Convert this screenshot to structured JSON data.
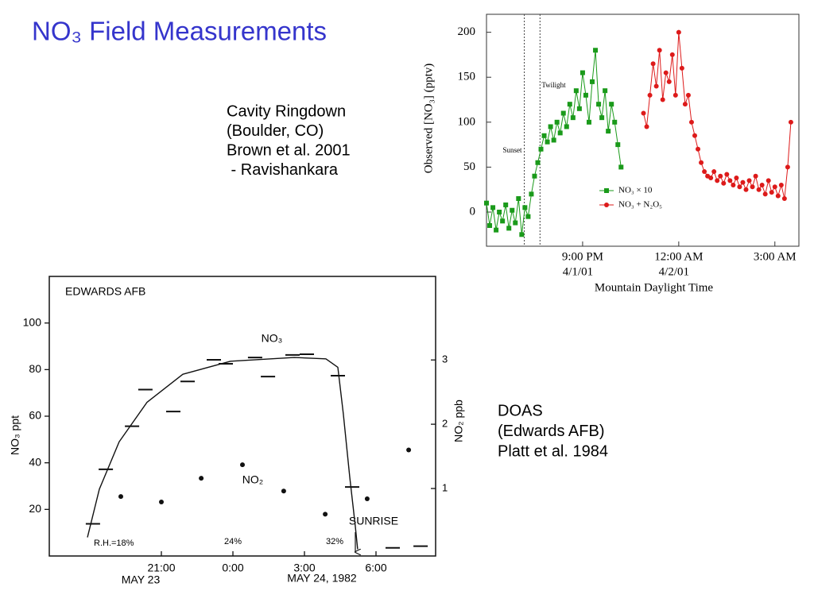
{
  "header": {
    "title": "NO₃ Field Measurements"
  },
  "text_blocks": [
    {
      "lines": [
        "Cavity Ringdown",
        "(Boulder, CO)",
        "Brown et al. 2001",
        " - Ravishankara"
      ]
    },
    {
      "lines": [
        "DOAS",
        "(Edwards AFB)",
        "Platt et al. 1984"
      ]
    }
  ],
  "chart_data": [
    {
      "type": "line",
      "ylabel": "Observed [NO₃] (pptv)",
      "xlabel": "Mountain Daylight Time",
      "xlim": [
        18,
        27.75
      ],
      "ylim": [
        -38,
        220
      ],
      "xticks": [
        {
          "value": 21,
          "label": "9:00 PM"
        },
        {
          "value": 24,
          "label": "12:00 AM"
        },
        {
          "value": 27,
          "label": "3:00 AM"
        }
      ],
      "xdates": [
        "4/1/01",
        "4/2/01"
      ],
      "yticks": [
        0,
        50,
        100,
        150,
        200
      ],
      "vlines": [
        {
          "value": 19.18,
          "label": "Sunset"
        },
        {
          "value": 19.67,
          "label": "Twilight"
        }
      ],
      "legend": "lower right",
      "series": [
        {
          "name": "NO₃ × 10",
          "color": "#1a9a1a",
          "marker": "square",
          "x": [
            18.0,
            18.1,
            18.2,
            18.3,
            18.4,
            18.5,
            18.6,
            18.7,
            18.8,
            18.9,
            19.0,
            19.1,
            19.2,
            19.3,
            19.4,
            19.5,
            19.6,
            19.7,
            19.8,
            19.9,
            20.0,
            20.1,
            20.2,
            20.3,
            20.4,
            20.5,
            20.6,
            20.7,
            20.8,
            20.9,
            21.0,
            21.1,
            21.2,
            21.3,
            21.4,
            21.5,
            21.6,
            21.7,
            21.8,
            21.9,
            22.0,
            22.1,
            22.2
          ],
          "values": [
            10,
            -15,
            5,
            -20,
            0,
            -10,
            8,
            -18,
            2,
            -12,
            15,
            -25,
            5,
            -5,
            20,
            40,
            55,
            70,
            85,
            78,
            95,
            80,
            100,
            88,
            110,
            95,
            120,
            105,
            135,
            115,
            155,
            130,
            100,
            145,
            180,
            120,
            105,
            135,
            90,
            120,
            100,
            75,
            50
          ]
        },
        {
          "name": "NO₃ + N₂O₅",
          "color": "#dd1a1a",
          "marker": "circle",
          "x": [
            22.9,
            23.0,
            23.1,
            23.2,
            23.3,
            23.4,
            23.5,
            23.6,
            23.7,
            23.8,
            23.9,
            24.0,
            24.1,
            24.2,
            24.3,
            24.4,
            24.5,
            24.6,
            24.7,
            24.8,
            24.9,
            25.0,
            25.1,
            25.2,
            25.3,
            25.4,
            25.5,
            25.6,
            25.7,
            25.8,
            25.9,
            26.0,
            26.1,
            26.2,
            26.3,
            26.4,
            26.5,
            26.6,
            26.7,
            26.8,
            26.9,
            27.0,
            27.1,
            27.2,
            27.3,
            27.4,
            27.5
          ],
          "values": [
            110,
            95,
            130,
            165,
            140,
            180,
            125,
            155,
            145,
            175,
            130,
            200,
            160,
            120,
            130,
            100,
            85,
            70,
            55,
            45,
            40,
            38,
            45,
            35,
            40,
            32,
            42,
            35,
            30,
            38,
            28,
            33,
            25,
            35,
            28,
            40,
            25,
            30,
            20,
            35,
            22,
            28,
            18,
            30,
            15,
            50,
            100
          ]
        }
      ]
    },
    {
      "type": "scatter",
      "ylabel": "NO₃ ppt",
      "y2label": "NO₂ ppb",
      "xlim": [
        16.3,
        32.5
      ],
      "ylim": [
        0,
        120
      ],
      "y2lim": [
        -0.05,
        4.3
      ],
      "xticks": [
        {
          "value": 21,
          "label": "21:00"
        },
        {
          "value": 24,
          "label": "0:00"
        },
        {
          "value": 27,
          "label": "3:00"
        },
        {
          "value": 30,
          "label": "6:00"
        }
      ],
      "yticks": [
        20,
        40,
        60,
        80,
        100
      ],
      "y2ticks": [
        1,
        2,
        3
      ],
      "annotations": [
        "EDWARDS AFB",
        "SUNRISE",
        "R.H.=18%",
        "24%",
        "32%",
        "MAY 23",
        "MAY 24, 1982"
      ],
      "series": [
        {
          "name": "NO₃",
          "color": "#111111",
          "marker": "dash",
          "x": [
            18.13,
            18.67,
            19.77,
            20.33,
            21.5,
            22.1,
            23.2,
            23.7,
            24.93,
            25.47,
            26.5,
            27.1,
            28.4,
            29.0,
            30.7,
            31.87
          ],
          "values": [
            13.8,
            37.2,
            55.7,
            71.4,
            62,
            74.9,
            84.2,
            82.5,
            85.2,
            77,
            86.3,
            86.6,
            77.4,
            29.6,
            3.5,
            4.2
          ],
          "curve": {
            "x": [
              17.9,
              18.4,
              19.23,
              20.4,
              21.9,
              23.9,
              26.57,
              27.9,
              28.4,
              28.63,
              28.9,
              29.13,
              29.23
            ],
            "values": [
              8,
              28.7,
              49,
              66,
              78,
              83.6,
              85.2,
              84.6,
              81,
              61,
              33.8,
              13,
              2.9
            ]
          }
        },
        {
          "name": "NO₂",
          "color": "#111111",
          "marker": "dot",
          "axis": "y2",
          "x": [
            19.3,
            21.0,
            22.67,
            24.4,
            26.13,
            27.87,
            29.63,
            31.37
          ],
          "values": [
            0.875,
            0.79,
            1.16,
            1.37,
            0.96,
            0.6,
            0.84,
            1.6
          ]
        }
      ]
    }
  ]
}
